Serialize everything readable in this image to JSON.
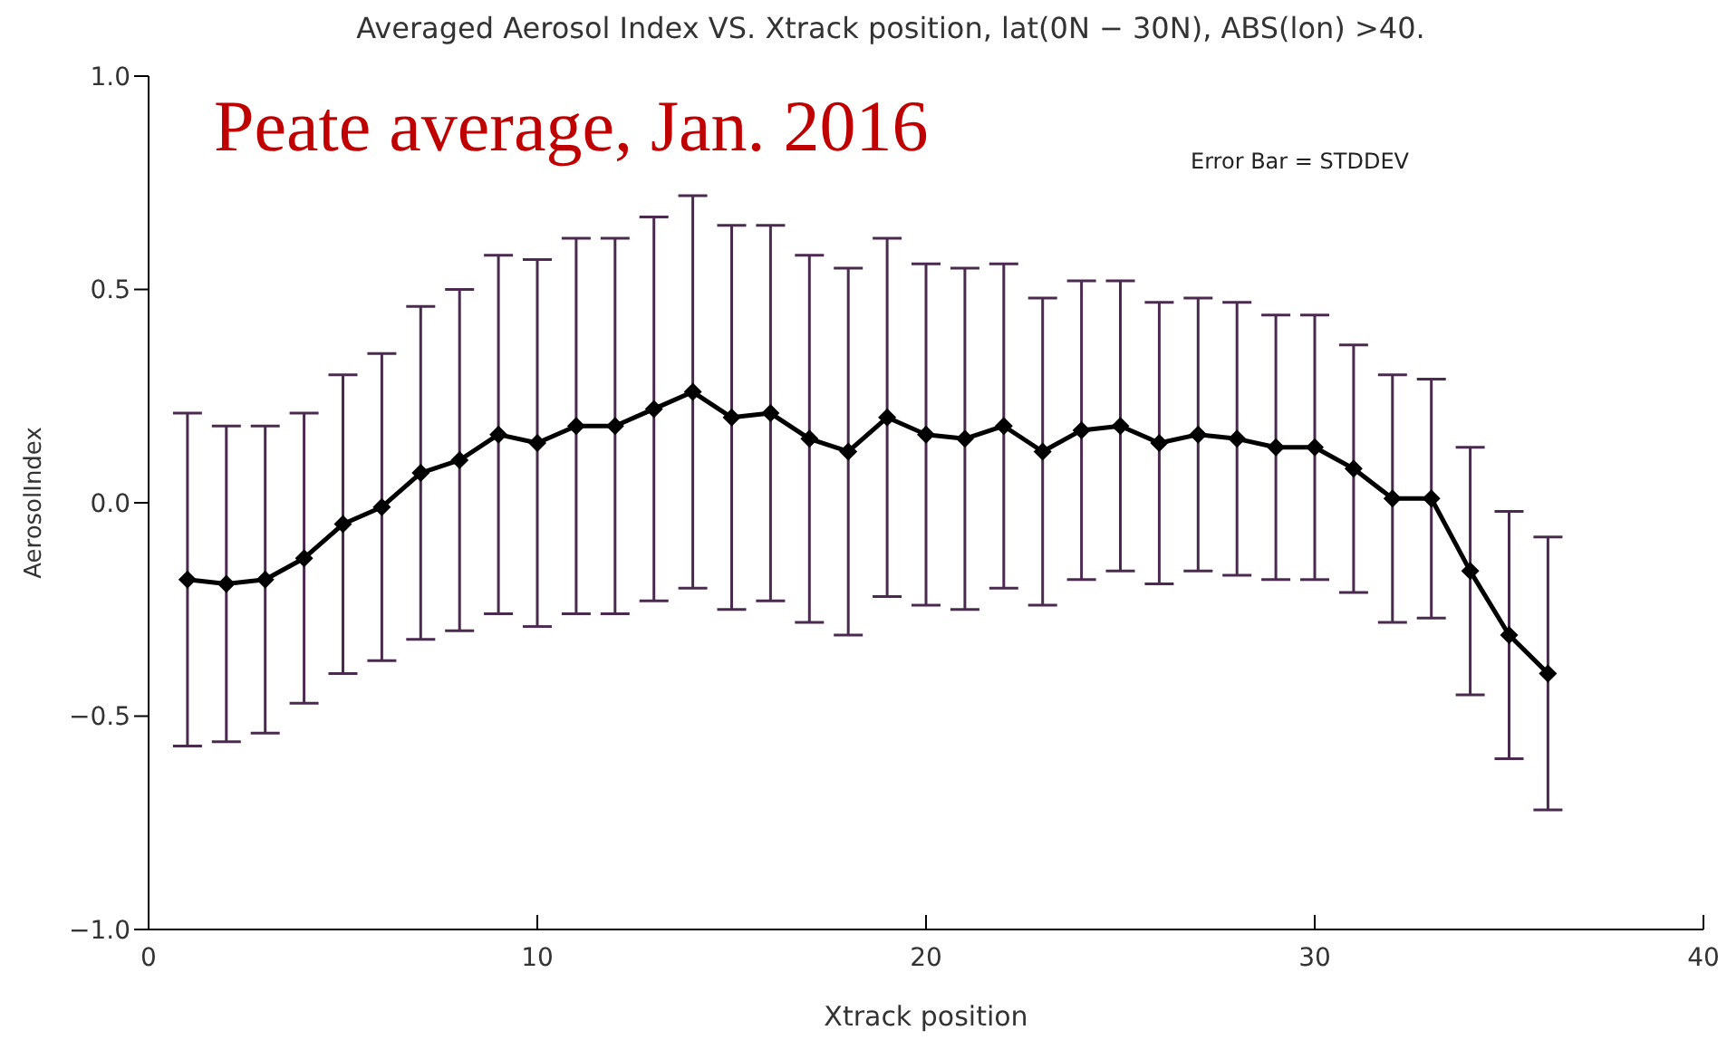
{
  "chart_data": {
    "type": "line",
    "title": "Averaged Aerosol Index VS. Xtrack position, lat(0N − 30N), ABS(lon) >40.",
    "xlabel": "Xtrack position",
    "ylabel": "AerosolIndex",
    "annotations": [
      "Peate average, Jan. 2016",
      "Error Bar = STDDEV"
    ],
    "x": [
      1,
      2,
      3,
      4,
      5,
      6,
      7,
      8,
      9,
      10,
      11,
      12,
      13,
      14,
      15,
      16,
      17,
      18,
      19,
      20,
      21,
      22,
      23,
      24,
      25,
      26,
      27,
      28,
      29,
      30,
      31,
      32,
      33,
      34,
      35,
      36
    ],
    "series": [
      {
        "color": "#000000",
        "values": [
          -0.18,
          -0.19,
          -0.18,
          -0.13,
          -0.05,
          -0.01,
          0.07,
          0.1,
          0.16,
          0.14,
          0.18,
          0.18,
          0.22,
          0.26,
          0.2,
          0.21,
          0.15,
          0.12,
          0.2,
          0.16,
          0.15,
          0.18,
          0.12,
          0.17,
          0.18,
          0.14,
          0.16,
          0.15,
          0.13,
          0.13,
          0.08,
          0.01,
          0.01,
          -0.16,
          -0.31,
          -0.4
        ],
        "errors": [
          0.39,
          0.37,
          0.36,
          0.34,
          0.35,
          0.36,
          0.39,
          0.4,
          0.42,
          0.43,
          0.44,
          0.44,
          0.45,
          0.46,
          0.45,
          0.44,
          0.43,
          0.43,
          0.42,
          0.4,
          0.4,
          0.38,
          0.36,
          0.35,
          0.34,
          0.33,
          0.32,
          0.32,
          0.31,
          0.31,
          0.29,
          0.29,
          0.28,
          0.29,
          0.29,
          0.32
        ]
      }
    ],
    "xlim": [
      0,
      40
    ],
    "xticks": [
      0,
      10,
      20,
      30,
      40
    ],
    "ylim": [
      -1,
      1
    ],
    "yticks": [
      {
        "value": -1,
        "label": "−1.0"
      },
      {
        "value": -0.5,
        "label": "−0.5"
      },
      {
        "value": 0,
        "label": "0.0"
      },
      {
        "value": 0.5,
        "label": "0.5"
      },
      {
        "value": 1,
        "label": "1.0"
      }
    ],
    "marker": "diamond",
    "legend": false,
    "grid": false
  }
}
